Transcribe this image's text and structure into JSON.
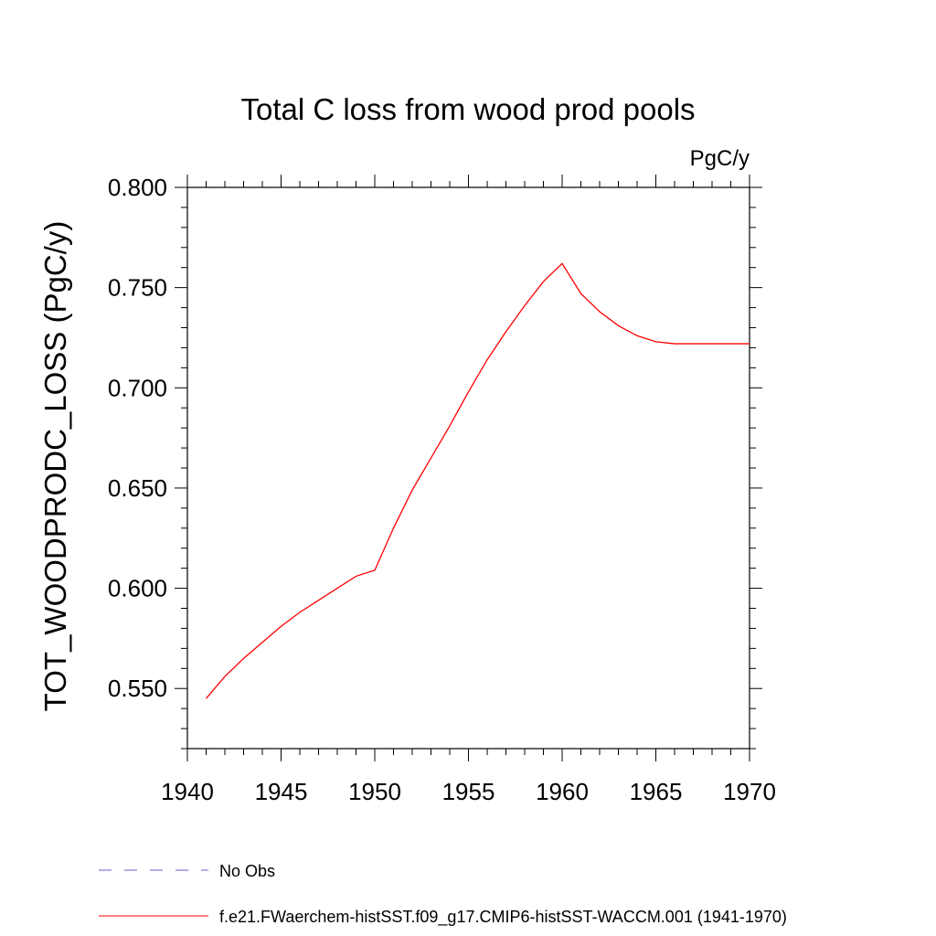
{
  "chart_data": {
    "type": "line",
    "title": "Total C loss from wood prod pools",
    "units_label": "PgC/y",
    "ylabel": "TOT_WOODPRODC_LOSS  (PgC/y)",
    "xlabel": "",
    "xlim": [
      1940,
      1970
    ],
    "ylim": [
      0.52,
      0.8
    ],
    "xticks": [
      1940,
      1945,
      1950,
      1955,
      1960,
      1965,
      1970
    ],
    "xtick_labels": [
      "1940",
      "1945",
      "1950",
      "1955",
      "1960",
      "1965",
      "1970"
    ],
    "yticks": [
      0.55,
      0.6,
      0.65,
      0.7,
      0.75,
      0.8
    ],
    "ytick_labels": [
      "0.550",
      "0.600",
      "0.650",
      "0.700",
      "0.750",
      "0.800"
    ],
    "x_minor_step": 1,
    "y_minor_step": 0.01,
    "series": [
      {
        "name": "f.e21.FWaerchem-histSST.f09_g17.CMIP6-histSST-WACCM.001 (1941-1970)",
        "color": "#ff0000",
        "dash": "solid",
        "x": [
          1941,
          1942,
          1943,
          1944,
          1945,
          1946,
          1947,
          1948,
          1949,
          1950,
          1951,
          1952,
          1953,
          1954,
          1955,
          1956,
          1957,
          1958,
          1959,
          1960,
          1961,
          1962,
          1963,
          1964,
          1965,
          1966,
          1967,
          1968,
          1969,
          1970
        ],
        "values": [
          0.545,
          0.556,
          0.565,
          0.573,
          0.581,
          0.588,
          0.594,
          0.6,
          0.606,
          0.609,
          0.63,
          0.649,
          0.665,
          0.681,
          0.698,
          0.714,
          0.728,
          0.741,
          0.753,
          0.762,
          0.747,
          0.738,
          0.731,
          0.726,
          0.723,
          0.722,
          0.722,
          0.722,
          0.722,
          0.722
        ]
      }
    ],
    "legend": {
      "placement": "bottom",
      "entries": [
        {
          "label": "No Obs",
          "color": "#6a5acd",
          "dash": "dashed"
        },
        {
          "label": "f.e21.FWaerchem-histSST.f09_g17.CMIP6-histSST-WACCM.001 (1941-1970)",
          "color": "#ff0000",
          "dash": "solid"
        }
      ]
    }
  }
}
